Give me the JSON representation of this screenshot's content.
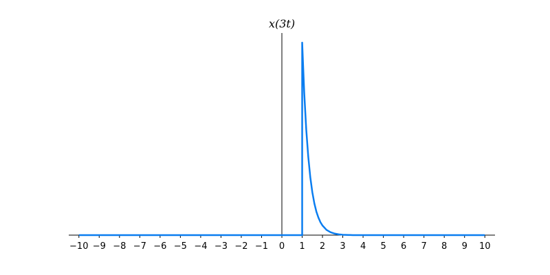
{
  "chart_data": {
    "type": "line",
    "title": "x(3t)",
    "xlabel": "",
    "ylabel": "",
    "xlim": [
      -10.5,
      10.5
    ],
    "ylim": [
      0,
      1.05
    ],
    "grid": false,
    "color": "#0a7df0",
    "xticks": [
      -10,
      -9,
      -8,
      -7,
      -6,
      -5,
      -4,
      -3,
      -2,
      -1,
      0,
      1,
      2,
      3,
      4,
      5,
      6,
      7,
      8,
      9,
      10
    ],
    "xtick_labels": [
      "−10",
      "−9",
      "−8",
      "−7",
      "−6",
      "−5",
      "−4",
      "−3",
      "−2",
      "−1",
      "0",
      "1",
      "2",
      "3",
      "4",
      "5",
      "6",
      "7",
      "8",
      "9",
      "10"
    ],
    "series": [
      {
        "x": [
          -10,
          1,
          1,
          1.1,
          1.2,
          1.3,
          1.4,
          1.5,
          1.6,
          1.7,
          1.8,
          1.9,
          2.0,
          2.2,
          2.4,
          2.6,
          2.8,
          3.0,
          3.5,
          4.0,
          5.0,
          10
        ],
        "y": [
          0,
          0,
          1.0,
          0.741,
          0.549,
          0.407,
          0.301,
          0.223,
          0.165,
          0.122,
          0.091,
          0.067,
          0.05,
          0.027,
          0.015,
          0.008,
          0.004,
          0.002,
          0.0,
          0.0,
          0.0,
          0.0
        ]
      }
    ]
  }
}
